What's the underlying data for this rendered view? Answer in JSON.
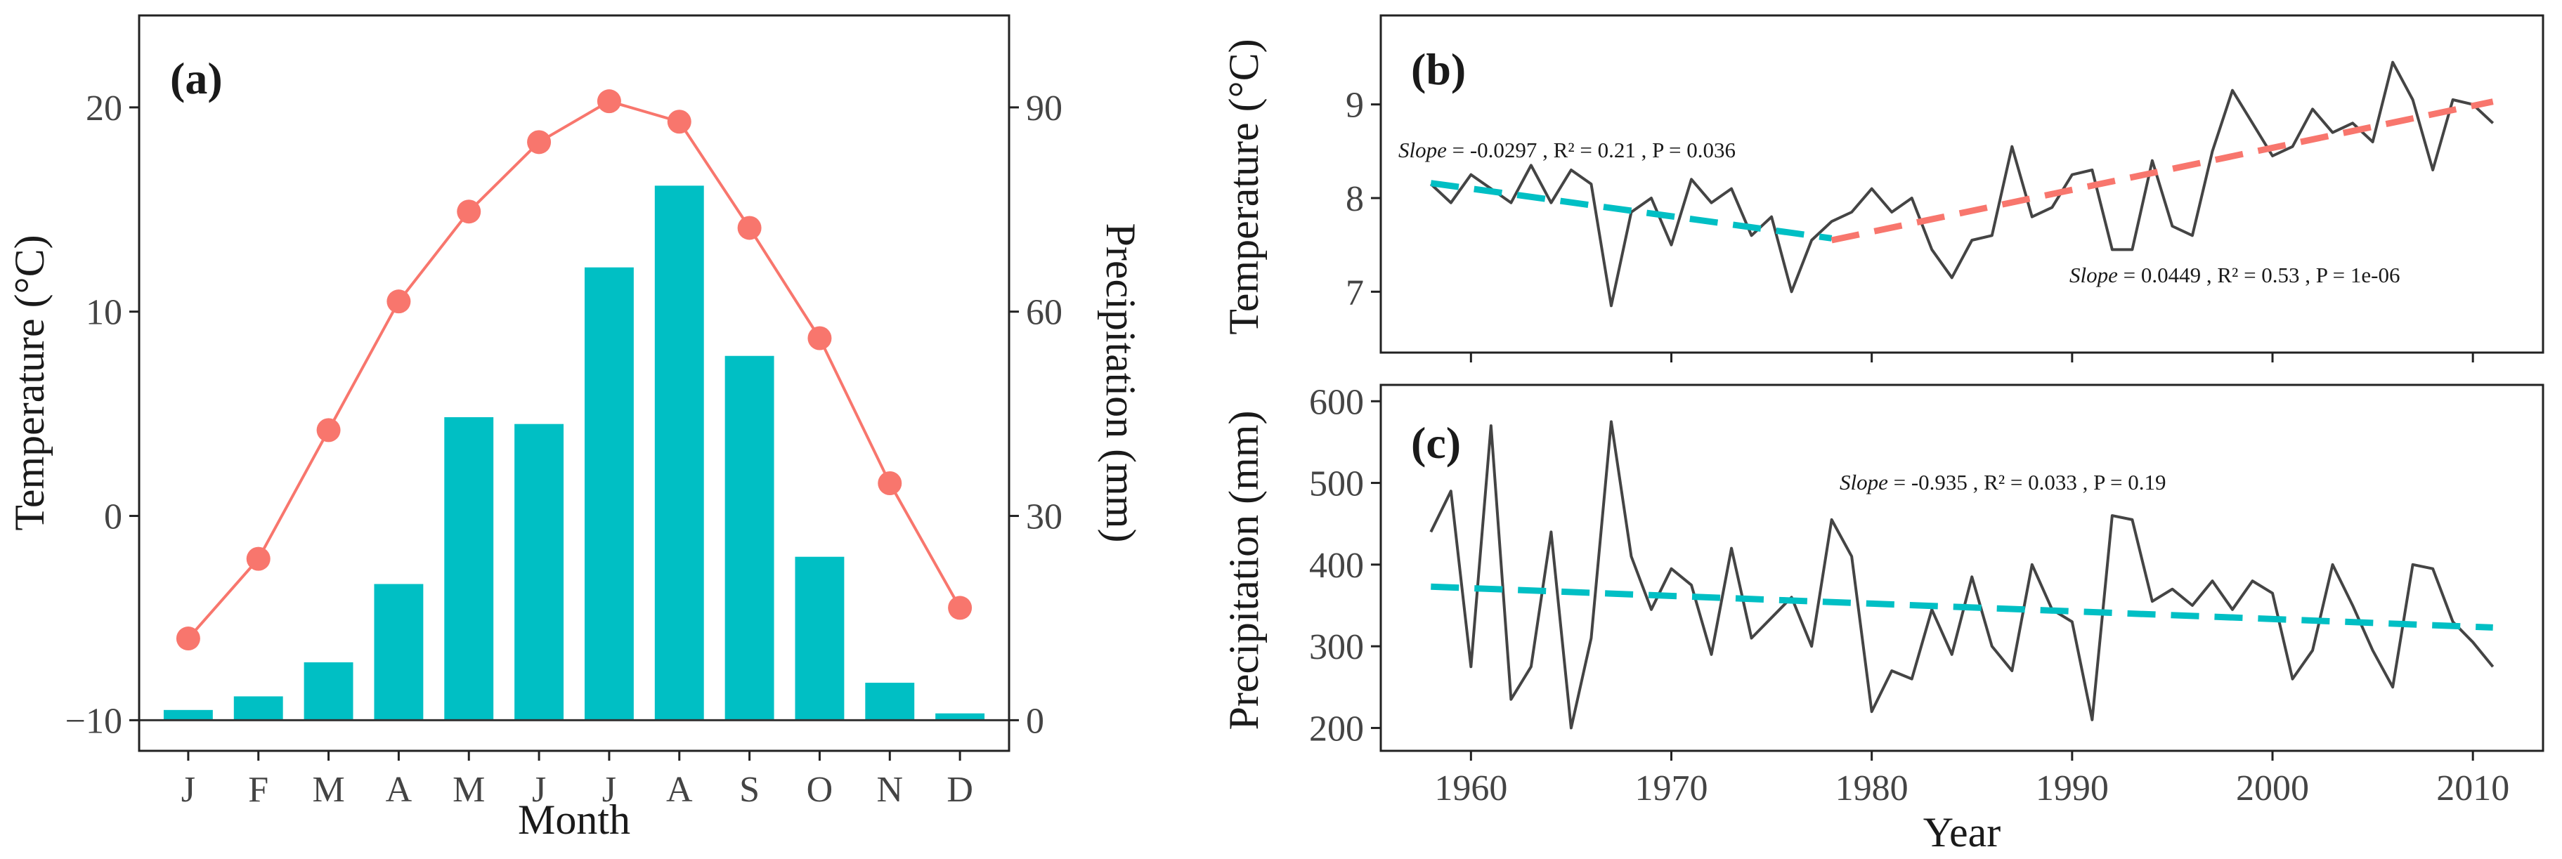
{
  "figure": {
    "panels": [
      {
        "id": "a",
        "label": "(a)"
      },
      {
        "id": "b",
        "label": "(b)"
      },
      {
        "id": "c",
        "label": "(c)"
      }
    ]
  },
  "colors": {
    "bar": "#00BFC4",
    "temp_line": "#F8766D",
    "series_line": "#444444",
    "trend_b1": "#00BFC4",
    "trend_b2": "#F8766D",
    "trend_c": "#00BFC4",
    "axis": "#222222",
    "ticklabel": "#444444"
  },
  "chart_data": [
    {
      "id": "a",
      "type": "bar",
      "title": "(a)",
      "xlabel": "Month",
      "ylabel": "Temperature (°C)",
      "y2label": "Precipitation (mm)",
      "categories": [
        "J",
        "F",
        "M",
        "A",
        "M",
        "J",
        "J",
        "A",
        "S",
        "O",
        "N",
        "D"
      ],
      "ylim": [
        -11.5,
        24.5
      ],
      "yticks": [
        -10,
        0,
        10,
        20
      ],
      "y2lim": [
        -4.5,
        103.5
      ],
      "y2ticks": [
        0,
        30,
        60,
        90
      ],
      "series": [
        {
          "name": "Precipitation (mm)",
          "type": "bar",
          "axis": "y2",
          "values": [
            1.5,
            3.5,
            8.5,
            20.0,
            44.5,
            43.5,
            66.5,
            78.5,
            53.5,
            24.0,
            5.5,
            1.0
          ]
        },
        {
          "name": "Temperature (°C)",
          "type": "line",
          "axis": "y",
          "values": [
            -6.0,
            -2.1,
            4.2,
            10.5,
            14.9,
            18.3,
            20.3,
            19.3,
            14.1,
            8.7,
            1.6,
            -4.5
          ]
        }
      ]
    },
    {
      "id": "b",
      "type": "line",
      "title": "(b)",
      "xlabel": "",
      "ylabel": "Temperature (°C)",
      "xlim": [
        1955.5,
        2013.5
      ],
      "ylim": [
        6.35,
        9.95
      ],
      "yticks": [
        7,
        8,
        9
      ],
      "xticks": [
        1960,
        1970,
        1980,
        1990,
        2000,
        2010
      ],
      "x": [
        1958,
        1959,
        1960,
        1961,
        1962,
        1963,
        1964,
        1965,
        1966,
        1967,
        1968,
        1969,
        1970,
        1971,
        1972,
        1973,
        1974,
        1975,
        1976,
        1977,
        1978,
        1979,
        1980,
        1981,
        1982,
        1983,
        1984,
        1985,
        1986,
        1987,
        1988,
        1989,
        1990,
        1991,
        1992,
        1993,
        1994,
        1995,
        1996,
        1997,
        1998,
        1999,
        2000,
        2001,
        2002,
        2003,
        2004,
        2005,
        2006,
        2007,
        2008,
        2009,
        2010,
        2011
      ],
      "series": [
        {
          "name": "Temperature",
          "values": [
            8.15,
            7.95,
            8.25,
            8.1,
            7.95,
            8.35,
            7.95,
            8.3,
            8.15,
            6.85,
            7.85,
            8.0,
            7.5,
            8.2,
            7.95,
            8.1,
            7.6,
            7.8,
            7.0,
            7.55,
            7.75,
            7.85,
            8.1,
            7.85,
            8.0,
            7.45,
            7.15,
            7.55,
            7.6,
            8.55,
            7.8,
            7.9,
            8.25,
            8.3,
            7.45,
            7.45,
            8.4,
            7.7,
            7.6,
            8.5,
            9.15,
            8.8,
            8.45,
            8.55,
            8.95,
            8.7,
            8.8,
            8.6,
            9.45,
            9.05,
            8.3,
            9.05,
            9.0,
            8.8
          ]
        }
      ],
      "trends": [
        {
          "x": [
            1958,
            1978
          ],
          "y": [
            8.16,
            7.57
          ],
          "slope_label": "Slope",
          "stats": " = -0.0297 , R² = 0.21 , P = 0.036"
        },
        {
          "x": [
            1978,
            2011
          ],
          "y": [
            7.55,
            9.03
          ],
          "slope_label": "Slope",
          "stats": " = 0.0449 , R² = 0.53 , P = 1e-06"
        }
      ]
    },
    {
      "id": "c",
      "type": "line",
      "title": "(c)",
      "xlabel": "Year",
      "ylabel": "Precipitation (mm)",
      "xlim": [
        1955.5,
        2013.5
      ],
      "ylim": [
        172,
        620
      ],
      "yticks": [
        200,
        300,
        400,
        500,
        600
      ],
      "xticks": [
        1960,
        1970,
        1980,
        1990,
        2000,
        2010
      ],
      "x": [
        1958,
        1959,
        1960,
        1961,
        1962,
        1963,
        1964,
        1965,
        1966,
        1967,
        1968,
        1969,
        1970,
        1971,
        1972,
        1973,
        1974,
        1975,
        1976,
        1977,
        1978,
        1979,
        1980,
        1981,
        1982,
        1983,
        1984,
        1985,
        1986,
        1987,
        1988,
        1989,
        1990,
        1991,
        1992,
        1993,
        1994,
        1995,
        1996,
        1997,
        1998,
        1999,
        2000,
        2001,
        2002,
        2003,
        2004,
        2005,
        2006,
        2007,
        2008,
        2009,
        2010,
        2011
      ],
      "series": [
        {
          "name": "Precipitation",
          "values": [
            440,
            490,
            275,
            570,
            235,
            275,
            440,
            200,
            310,
            575,
            410,
            345,
            395,
            375,
            290,
            420,
            310,
            335,
            360,
            300,
            455,
            410,
            220,
            270,
            260,
            345,
            290,
            385,
            300,
            270,
            400,
            345,
            330,
            210,
            460,
            455,
            355,
            370,
            350,
            380,
            345,
            380,
            365,
            260,
            295,
            400,
            350,
            295,
            250,
            400,
            395,
            330,
            305,
            275
          ]
        }
      ],
      "trends": [
        {
          "x": [
            1958,
            2011
          ],
          "y": [
            373,
            323
          ],
          "slope_label": "Slope",
          "stats": " = -0.935 , R² = 0.033 , P = 0.19"
        }
      ]
    }
  ]
}
